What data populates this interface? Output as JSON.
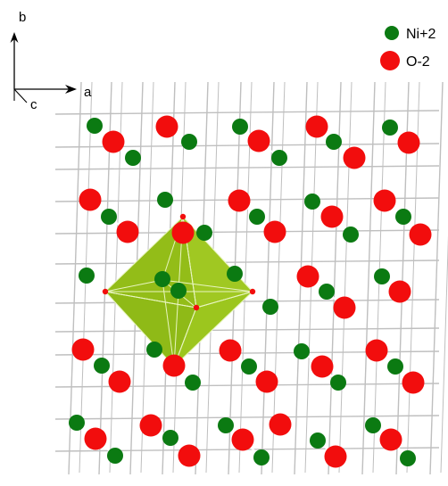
{
  "axes": {
    "b_label": "b",
    "a_label": "a",
    "c_label": "c"
  },
  "legend": {
    "entries": [
      {
        "label": "Ni+2",
        "color": "#0b7a12"
      },
      {
        "label": "O-2",
        "color": "#f20d0d"
      }
    ]
  },
  "colors": {
    "grid_line": "#bfbfbf",
    "ni_atom": "#0b7a12",
    "o_atom": "#f20d0d",
    "polyhedron_fill": "#99c41a",
    "polyhedron_edge": "#e8f5c0",
    "bond": "#ffffff"
  },
  "structure": {
    "compound_ions": [
      "Ni+2",
      "O-2"
    ],
    "highlighted_polyhedron": "octahedron"
  }
}
